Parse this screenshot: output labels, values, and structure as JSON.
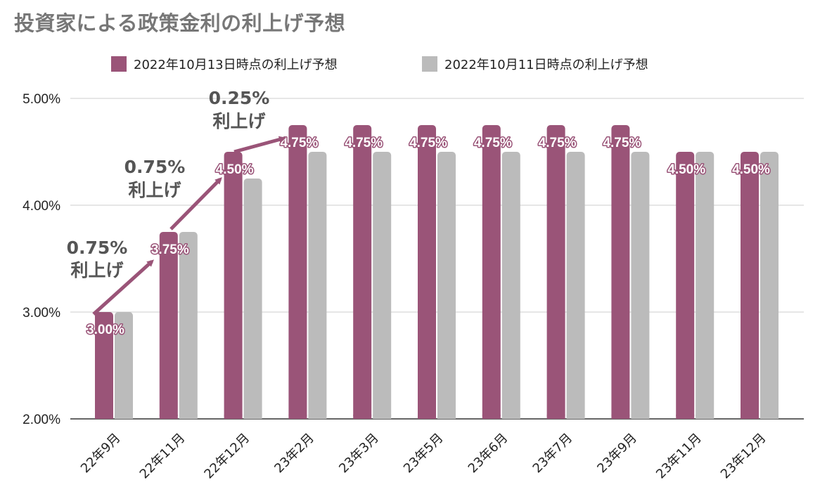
{
  "chart_data": {
    "type": "bar",
    "title": "投資家による政策金利の利上げ予想",
    "xlabel": "",
    "ylabel": "",
    "categories": [
      "22年9月",
      "22年11月",
      "22年12月",
      "23年2月",
      "23年3月",
      "23年5月",
      "23年6月",
      "23年7月",
      "23年9月",
      "23年11月",
      "23年12月"
    ],
    "series": [
      {
        "name": "2022年10月13日時点の利上げ予想",
        "color": "#9a5478",
        "values": [
          3.0,
          3.75,
          4.5,
          4.75,
          4.75,
          4.75,
          4.75,
          4.75,
          4.75,
          4.5,
          4.5
        ],
        "data_labels": [
          "3.00%",
          "3.75%",
          "4.50%",
          "4.75%",
          "4.75%",
          "4.75%",
          "4.75%",
          "4.75%",
          "4.75%",
          "4.50%",
          "4.50%"
        ]
      },
      {
        "name": "2022年10月11日時点の利上げ予想",
        "color": "#bbbbbb",
        "values": [
          3.0,
          3.75,
          4.25,
          4.5,
          4.5,
          4.5,
          4.5,
          4.5,
          4.5,
          4.5,
          4.5
        ]
      }
    ],
    "ylim": [
      2.0,
      5.0
    ],
    "yticks": [
      2.0,
      3.0,
      4.0,
      5.0
    ],
    "ytick_labels": [
      "2.00%",
      "3.00%",
      "4.00%",
      "5.00%"
    ],
    "grid": true,
    "legend_position": "top-center",
    "annotations": [
      {
        "line1": "0.75%",
        "line2": "利上げ",
        "from_category": 0,
        "to_category": 1
      },
      {
        "line1": "0.75%",
        "line2": "利上げ",
        "from_category": 1,
        "to_category": 2
      },
      {
        "line1": "0.25%",
        "line2": "利上げ",
        "from_category": 2,
        "to_category": 3
      }
    ],
    "annotation_color": "#9a5478"
  }
}
